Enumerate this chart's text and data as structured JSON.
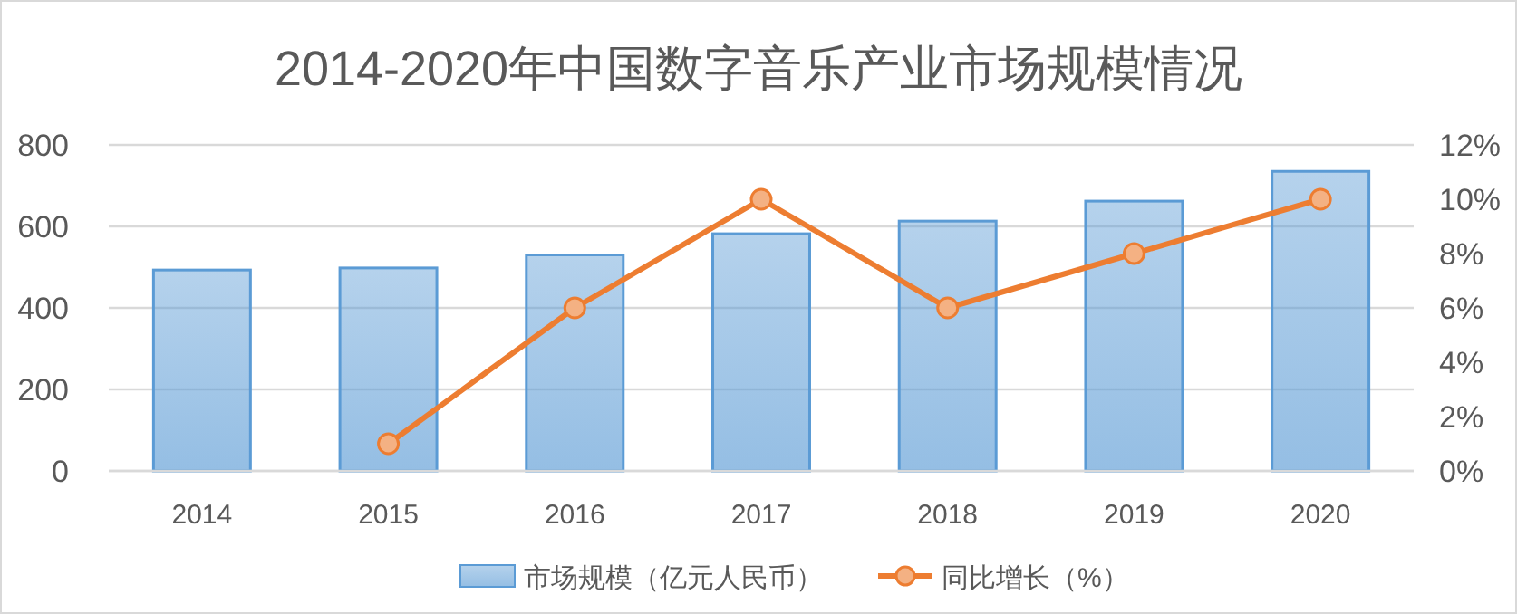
{
  "chart_data": {
    "type": "bar",
    "title": "2014-2020年中国数字音乐产业市场规模情况",
    "categories": [
      "2014",
      "2015",
      "2016",
      "2017",
      "2018",
      "2019",
      "2020"
    ],
    "series": [
      {
        "name": "市场规模（亿元人民币）",
        "color": "#5b9bd5",
        "values": [
          493,
          498,
          530,
          582,
          613,
          662,
          735
        ]
      },
      {
        "name": "同比增长（%）",
        "type": "line",
        "axis": "y2",
        "color": "#ed7d31",
        "marker": "circle",
        "values": [
          null,
          1,
          6,
          10,
          6,
          8,
          10
        ]
      }
    ],
    "ylim": [
      0,
      800
    ],
    "yticks": [
      0,
      200,
      400,
      600,
      800
    ],
    "y2lim": [
      0,
      12
    ],
    "y2ticks": [
      {
        "value": 0,
        "label": "0%"
      },
      {
        "value": 2,
        "label": "2%"
      },
      {
        "value": 4,
        "label": "4%"
      },
      {
        "value": 6,
        "label": "6%"
      },
      {
        "value": 8,
        "label": "8%"
      },
      {
        "value": 10,
        "label": "10%"
      },
      {
        "value": 12,
        "label": "12%"
      }
    ],
    "grid": "y",
    "legend": "bottom"
  }
}
